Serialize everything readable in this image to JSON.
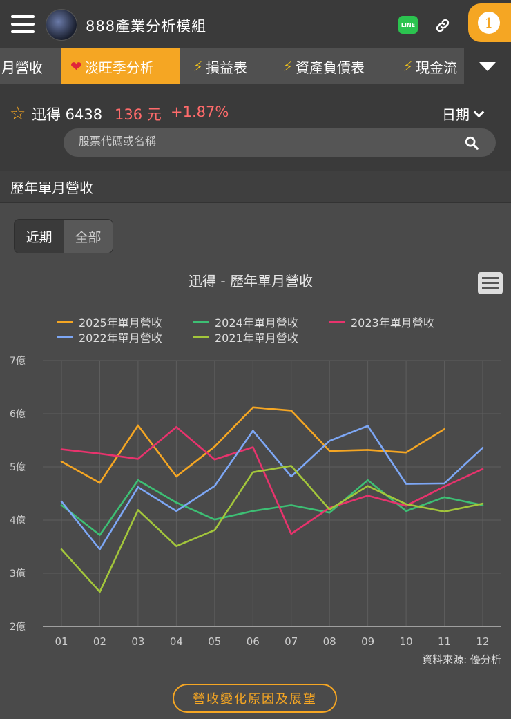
{
  "app": {
    "title": "888產業分析模組",
    "notification_count": "1",
    "line_label": "LINE"
  },
  "tabs": [
    {
      "label": "月營收",
      "icon": ""
    },
    {
      "label": "淡旺季分析",
      "icon": "heart-icon"
    },
    {
      "label": "損益表",
      "icon": "bolt-icon"
    },
    {
      "label": "資產負債表",
      "icon": "bolt-icon"
    },
    {
      "label": "現金流",
      "icon": "bolt-icon"
    }
  ],
  "stock": {
    "name_code": "迅得 6438",
    "price": "136 元",
    "change": "+1.87%",
    "date_label": "日期"
  },
  "search": {
    "placeholder": "股票代碼或名稱"
  },
  "section": {
    "title": "歷年單月營收"
  },
  "toggle": {
    "recent": "近期",
    "all": "全部"
  },
  "source": "資料來源: 優分析",
  "reason_button": "營收變化原因及展望",
  "colors": {
    "accent": "#f5a623",
    "up": "#ff6b6b"
  },
  "chart_data": {
    "type": "line",
    "title": "迅得 - 歷年單月營收",
    "categories": [
      "01",
      "02",
      "03",
      "04",
      "05",
      "06",
      "07",
      "08",
      "09",
      "10",
      "11",
      "12"
    ],
    "y_ticks": [
      "2億",
      "3億",
      "4億",
      "5億",
      "6億",
      "7億"
    ],
    "ylim": [
      2,
      7
    ],
    "y_unit": "億",
    "grid": true,
    "legend_position": "top",
    "series": [
      {
        "name": "2025年單月營收",
        "color": "#f5a623",
        "values": [
          5.1,
          4.7,
          5.78,
          4.82,
          5.38,
          6.12,
          6.06,
          5.3,
          5.32,
          5.27,
          5.71,
          null
        ]
      },
      {
        "name": "2024年單月營收",
        "color": "#3dbf74",
        "values": [
          4.28,
          3.72,
          4.75,
          4.33,
          4.01,
          4.17,
          4.28,
          4.14,
          4.75,
          4.17,
          4.43,
          4.28
        ]
      },
      {
        "name": "2023年單月營收",
        "color": "#e8336d",
        "values": [
          5.33,
          5.25,
          5.15,
          5.75,
          5.14,
          5.37,
          3.74,
          4.23,
          4.46,
          4.27,
          4.63,
          4.96
        ]
      },
      {
        "name": "2022年單月營收",
        "color": "#7da7f5",
        "values": [
          4.35,
          3.45,
          4.62,
          4.17,
          4.64,
          5.68,
          4.82,
          5.49,
          5.77,
          4.68,
          4.69,
          5.36
        ]
      },
      {
        "name": "2021年單月營收",
        "color": "#a3c63b",
        "values": [
          3.45,
          2.65,
          4.19,
          3.51,
          3.81,
          4.9,
          5.02,
          4.2,
          4.64,
          4.3,
          4.16,
          4.31
        ]
      }
    ]
  }
}
